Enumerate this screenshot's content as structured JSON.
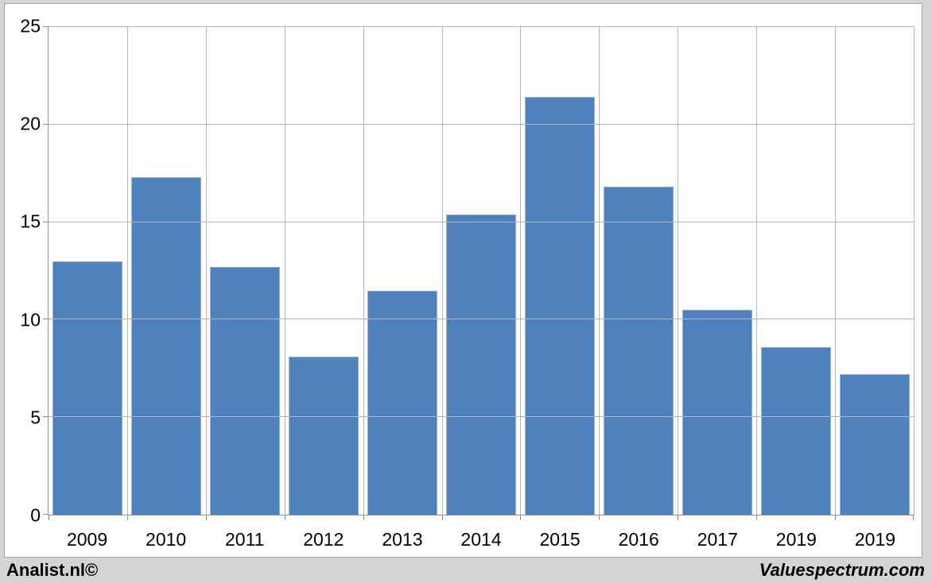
{
  "page": {
    "footer": {
      "left_text": "Analist.nl©",
      "right_text": "Valuespectrum.com"
    }
  },
  "colors": {
    "page_bg": "#d4d4d4",
    "chart_bg": "#ffffff",
    "chart_border": "#a3a3a3",
    "bar_fill": "#4f81bd",
    "bar_edge": "#95b3d7",
    "gridline": "#b5b5b5",
    "axis_line": "#8e8e8e",
    "text": "#000000"
  },
  "chart_data": {
    "type": "bar",
    "title": "",
    "xlabel": "",
    "ylabel": "",
    "categories": [
      "2009",
      "2010",
      "2011",
      "2012",
      "2013",
      "2014",
      "2015",
      "2016",
      "2017",
      "2019",
      "2019"
    ],
    "values": [
      13.0,
      17.3,
      12.7,
      8.1,
      11.5,
      15.4,
      21.4,
      16.8,
      10.5,
      8.6,
      7.2
    ],
    "ylim": [
      0,
      25
    ],
    "yticks": [
      0,
      5,
      10,
      15,
      20,
      25
    ],
    "grid": true,
    "legend": false,
    "legend_position": "none",
    "plot_background": "white",
    "bar_gap_fraction": 0.11
  }
}
